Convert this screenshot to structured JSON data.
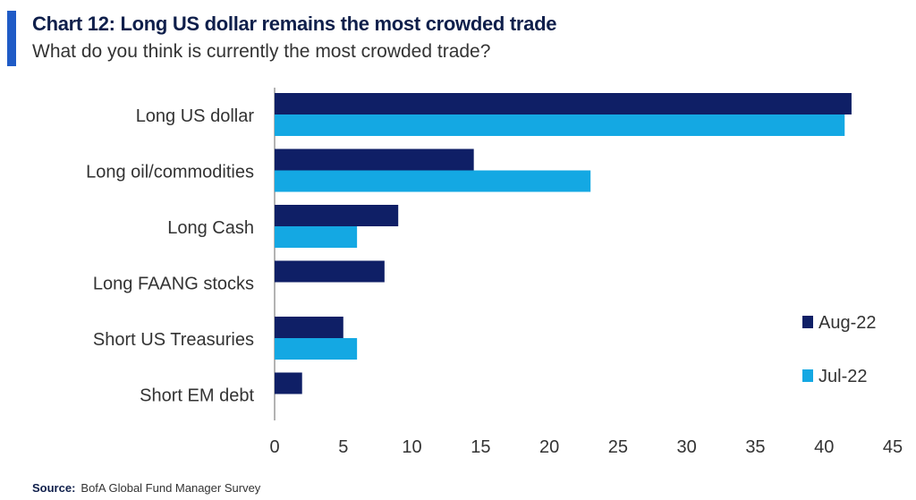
{
  "chart_data": {
    "type": "bar",
    "orientation": "horizontal",
    "title": "Chart 12: Long US dollar remains the most crowded trade",
    "subtitle": "What do you think is currently the most crowded trade?",
    "categories": [
      "Long US dollar",
      "Long oil/commodities",
      "Long Cash",
      "Long FAANG stocks",
      "Short US Treasuries",
      "Short EM debt"
    ],
    "series": [
      {
        "name": "Aug-22",
        "color": "#0f1f66",
        "values": [
          42,
          14.5,
          9,
          8,
          5,
          2
        ]
      },
      {
        "name": "Jul-22",
        "color": "#14a8e3",
        "values": [
          41.5,
          23,
          6,
          0,
          6,
          0
        ]
      }
    ],
    "xlim": [
      0,
      45
    ],
    "xticks": [
      "0",
      "5",
      "10",
      "15",
      "20",
      "25",
      "30",
      "35",
      "40",
      "45"
    ],
    "grid": false,
    "legend_position": "right"
  },
  "source": {
    "label": "Source:",
    "text": "BofA Global Fund Manager Survey"
  }
}
